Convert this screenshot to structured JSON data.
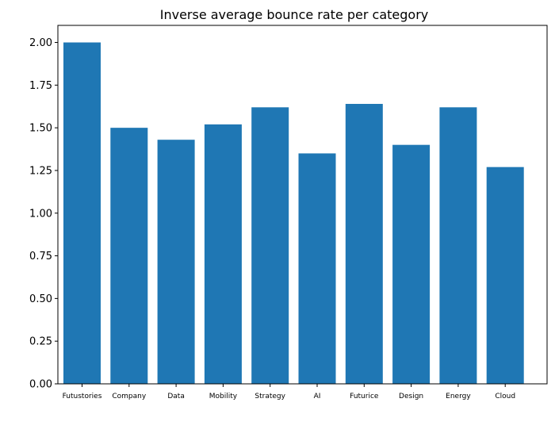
{
  "colors": {
    "bar": "#1f77b4",
    "axis": "#000000",
    "background": "#ffffff"
  },
  "chart_data": {
    "type": "bar",
    "title": "Inverse average bounce rate per category",
    "xlabel": "",
    "ylabel": "",
    "categories": [
      "Futustories",
      "Company",
      "Data",
      "Mobility",
      "Strategy",
      "AI",
      "Futurice",
      "Design",
      "Energy",
      "Cloud"
    ],
    "values": [
      2.0,
      1.5,
      1.43,
      1.52,
      1.62,
      1.35,
      1.64,
      1.4,
      1.62,
      1.27
    ],
    "ylim": [
      0,
      2.1
    ],
    "yticks": [
      "0.00",
      "0.25",
      "0.50",
      "0.75",
      "1.00",
      "1.25",
      "1.50",
      "1.75",
      "2.00"
    ],
    "grid": false,
    "legend": "none"
  }
}
